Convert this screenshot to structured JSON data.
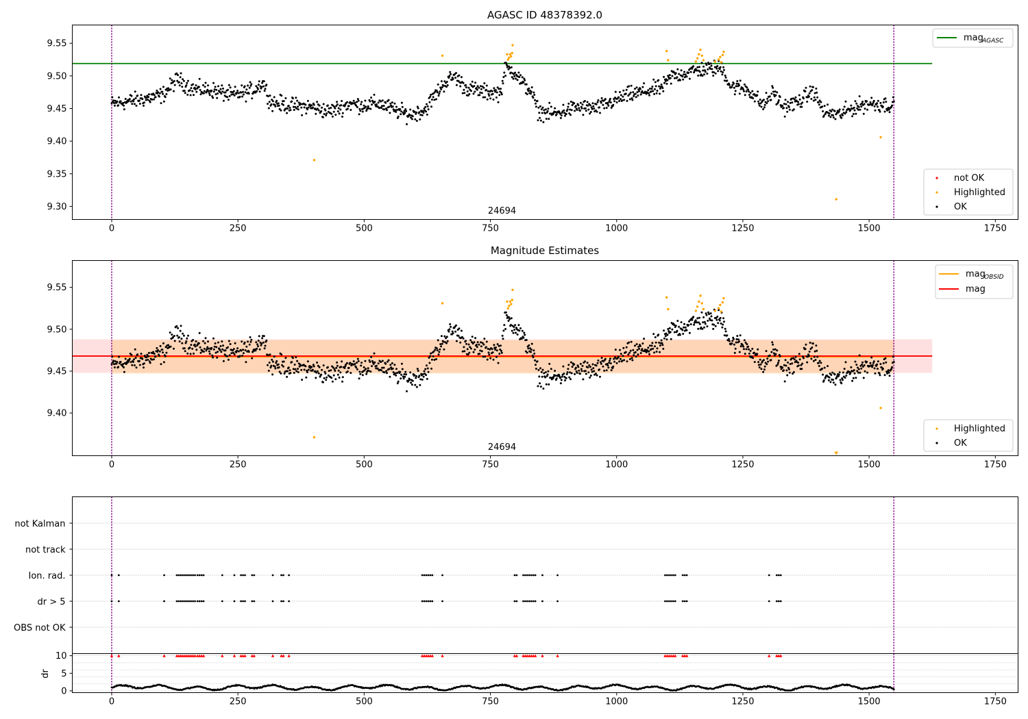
{
  "chart_data": [
    {
      "type": "scatter",
      "title": "AGASC ID 48378392.0",
      "xlim": [
        -78,
        1795
      ],
      "ylim": [
        9.28,
        9.578
      ],
      "xticks": [
        0,
        250,
        500,
        750,
        1000,
        1250,
        1500,
        1750
      ],
      "yticks": [
        9.3,
        9.35,
        9.4,
        9.45,
        9.5,
        9.55
      ],
      "obsid_label": "24694",
      "obsid_label_x": 773,
      "vlines": [
        0,
        1549
      ],
      "grid": false,
      "legend_lines": {
        "position": "top-right",
        "entries": [
          {
            "label": "mag",
            "sub": "AGASC",
            "color": "#008000"
          }
        ]
      },
      "legend_points": {
        "position": "bottom-right",
        "entries": [
          {
            "label": "not OK",
            "color": "#ff0000"
          },
          {
            "label": "Highlighted",
            "color": "#ffa500"
          },
          {
            "label": "OK",
            "color": "#000000"
          }
        ]
      },
      "agasc_mag": 9.519,
      "agasc_xrange": [
        -78,
        1625
      ],
      "series_ok": {
        "name": "OK",
        "color": "#000000",
        "x_range": [
          0,
          1549
        ],
        "count": 1300
      },
      "series_highlighted": {
        "name": "Highlighted",
        "color": "#ffa500",
        "points": [
          [
            401,
            9.371
          ],
          [
            655,
            9.531
          ],
          [
            783,
            9.533
          ],
          [
            785,
            9.525
          ],
          [
            787,
            9.528
          ],
          [
            789,
            9.533
          ],
          [
            791,
            9.53
          ],
          [
            793,
            9.535
          ],
          [
            794,
            9.547
          ],
          [
            1099,
            9.538
          ],
          [
            1102,
            9.524
          ],
          [
            1157,
            9.522
          ],
          [
            1160,
            9.527
          ],
          [
            1163,
            9.533
          ],
          [
            1166,
            9.54
          ],
          [
            1169,
            9.531
          ],
          [
            1172,
            9.524
          ],
          [
            1195,
            9.522
          ],
          [
            1202,
            9.525
          ],
          [
            1205,
            9.529
          ],
          [
            1207,
            9.521
          ],
          [
            1210,
            9.532
          ],
          [
            1212,
            9.537
          ],
          [
            1523,
            9.406
          ],
          [
            1435,
            9.311
          ]
        ]
      }
    },
    {
      "type": "scatter",
      "title": "Magnitude Estimates",
      "xlim": [
        -78,
        1795
      ],
      "ylim": [
        9.349,
        9.582
      ],
      "xticks": [
        0,
        250,
        500,
        750,
        1000,
        1250,
        1500,
        1750
      ],
      "yticks": [
        9.4,
        9.45,
        9.5,
        9.55
      ],
      "obsid_label": "24694",
      "obsid_label_x": 773,
      "vlines": [
        0,
        1549
      ],
      "grid": false,
      "legend_lines": {
        "position": "top-right",
        "entries": [
          {
            "label": "mag",
            "sub": "OBSID",
            "color": "#ffa500"
          },
          {
            "label": "mag",
            "sub": "",
            "color": "#ff0000"
          }
        ]
      },
      "legend_points": {
        "position": "bottom-right",
        "entries": [
          {
            "label": "Highlighted",
            "color": "#ffa500"
          },
          {
            "label": "OK",
            "color": "#000000"
          }
        ]
      },
      "mag": 9.468,
      "mag_band": [
        9.448,
        9.488
      ],
      "mag_obsid": 9.467,
      "mag_obsid_band": [
        9.447,
        9.487
      ],
      "mag_xrange": [
        -78,
        1625
      ],
      "mag_obsid_xrange": [
        0,
        1549
      ]
    },
    {
      "type": "scatter",
      "xlim": [
        -78,
        1795
      ],
      "xticks": [
        0,
        250,
        500,
        750,
        1000,
        1250,
        1500,
        1750
      ],
      "flag_rows": [
        "not Kalman",
        "not track",
        "Ion. rad.",
        "dr > 5",
        "OBS not OK"
      ],
      "flag_x": [
        0,
        14,
        104,
        129,
        133,
        137,
        141,
        145,
        149,
        153,
        157,
        161,
        165,
        170,
        174,
        178,
        182,
        219,
        243,
        256,
        260,
        264,
        278,
        282,
        319,
        336,
        340,
        351,
        615,
        619,
        623,
        627,
        631,
        635,
        655,
        798,
        802,
        815,
        819,
        823,
        827,
        831,
        835,
        839,
        853,
        883,
        1096,
        1100,
        1104,
        1108,
        1112,
        1116,
        1131,
        1135,
        1139,
        1302,
        1317,
        1321,
        1325
      ],
      "dr": {
        "ylabel": "dr",
        "yticks": [
          0,
          5,
          10
        ],
        "ylim": [
          -0.5,
          10.6
        ],
        "clip_value": 10,
        "clip_color": "#ff0000",
        "x_range": [
          0,
          1549
        ]
      },
      "vlines": [
        0,
        1549
      ]
    }
  ]
}
